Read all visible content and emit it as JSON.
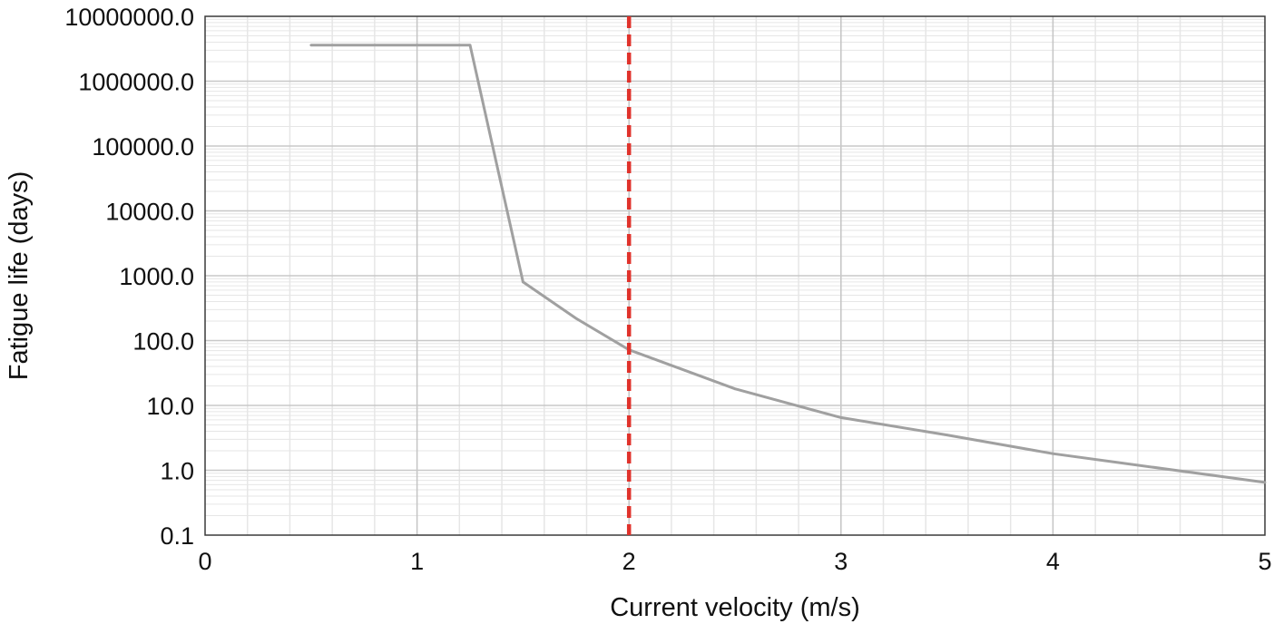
{
  "chart_data": {
    "type": "line",
    "title": "",
    "xlabel": "Current velocity (m/s)",
    "ylabel": "Fatigue life (days)",
    "x_scale": "linear",
    "y_scale": "log",
    "xlim": [
      0,
      5
    ],
    "ylim": [
      0.1,
      10000000
    ],
    "grid": true,
    "legend": "none",
    "x_ticks": [
      {
        "value": 0,
        "label": "0"
      },
      {
        "value": 1,
        "label": "1"
      },
      {
        "value": 2,
        "label": "2"
      },
      {
        "value": 3,
        "label": "3"
      },
      {
        "value": 4,
        "label": "4"
      },
      {
        "value": 5,
        "label": "5"
      }
    ],
    "y_ticks": [
      {
        "value": 0.1,
        "label": "0.1"
      },
      {
        "value": 1,
        "label": "1.0"
      },
      {
        "value": 10,
        "label": "10.0"
      },
      {
        "value": 100,
        "label": "100.0"
      },
      {
        "value": 1000,
        "label": "1000.0"
      },
      {
        "value": 10000,
        "label": "10000.0"
      },
      {
        "value": 100000,
        "label": "100000.0"
      },
      {
        "value": 1000000,
        "label": "1000000.0"
      },
      {
        "value": 10000000,
        "label": "10000000.0"
      }
    ],
    "series": [
      {
        "color": "#a0a0a0",
        "points": [
          {
            "x": 0.5,
            "y": 3600000
          },
          {
            "x": 1.25,
            "y": 3600000
          },
          {
            "x": 1.5,
            "y": 800
          },
          {
            "x": 1.75,
            "y": 220
          },
          {
            "x": 2.0,
            "y": 72
          },
          {
            "x": 2.5,
            "y": 18
          },
          {
            "x": 3.0,
            "y": 6.5
          },
          {
            "x": 3.5,
            "y": 3.5
          },
          {
            "x": 4.0,
            "y": 1.8
          },
          {
            "x": 5.0,
            "y": 0.65
          }
        ]
      }
    ],
    "reference_lines": [
      {
        "orientation": "vertical",
        "x": 2,
        "style": "dashed",
        "color": "#e0322b"
      }
    ]
  }
}
